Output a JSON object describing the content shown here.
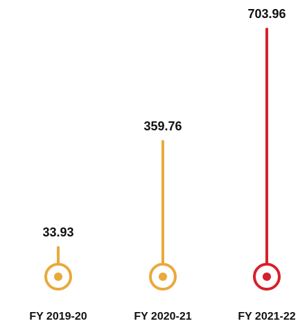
{
  "chart_data": {
    "type": "lollipop",
    "categories": [
      "FY 2019-20",
      "FY 2020-21",
      "FY 2021-22"
    ],
    "values": [
      33.93,
      359.76,
      703.96
    ],
    "colors": [
      "#e9a93b",
      "#e9a93b",
      "#d7202b"
    ]
  }
}
